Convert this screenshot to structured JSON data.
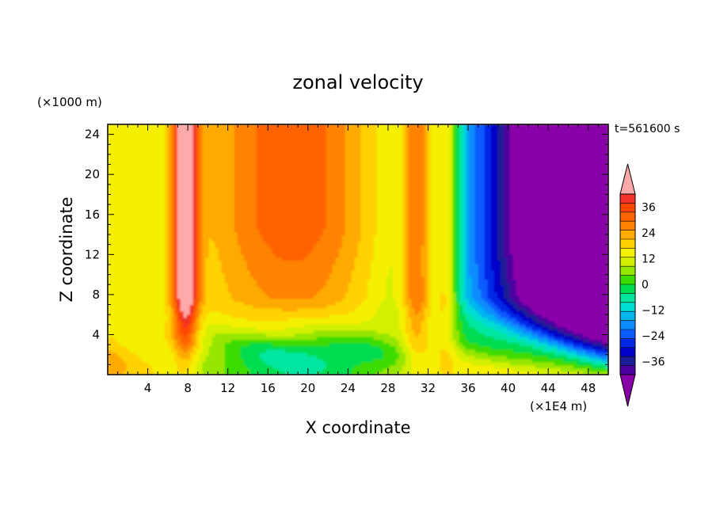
{
  "chart_data": {
    "type": "heatmap",
    "title": "zonal velocity",
    "xlabel": "X coordinate",
    "ylabel": "Z coordinate",
    "x_unit": "(×1E4 m)",
    "y_unit": "(×1000 m)",
    "time_label": "t=561600 s",
    "xlim": [
      0,
      50
    ],
    "ylim": [
      0,
      25
    ],
    "x_ticks": [
      4,
      8,
      12,
      16,
      20,
      24,
      28,
      32,
      36,
      40,
      44,
      48
    ],
    "y_ticks": [
      4,
      8,
      12,
      16,
      20,
      24
    ],
    "colorbar": {
      "min": -42,
      "max": 42,
      "step": 4,
      "labels": [
        36,
        24,
        12,
        0,
        -12,
        -24,
        -36
      ],
      "colors": [
        "#8a00a8",
        "#4b00a0",
        "#1c1c96",
        "#0000c8",
        "#0028e6",
        "#0a5aff",
        "#0a8cff",
        "#00b4f0",
        "#00dcd2",
        "#00e6a0",
        "#00dc50",
        "#3cdc00",
        "#96e600",
        "#d2f000",
        "#f5f000",
        "#ffd200",
        "#ffaa00",
        "#ff8200",
        "#ff6400",
        "#ff4600",
        "#f03228",
        "#ffaaaa"
      ]
    }
  }
}
